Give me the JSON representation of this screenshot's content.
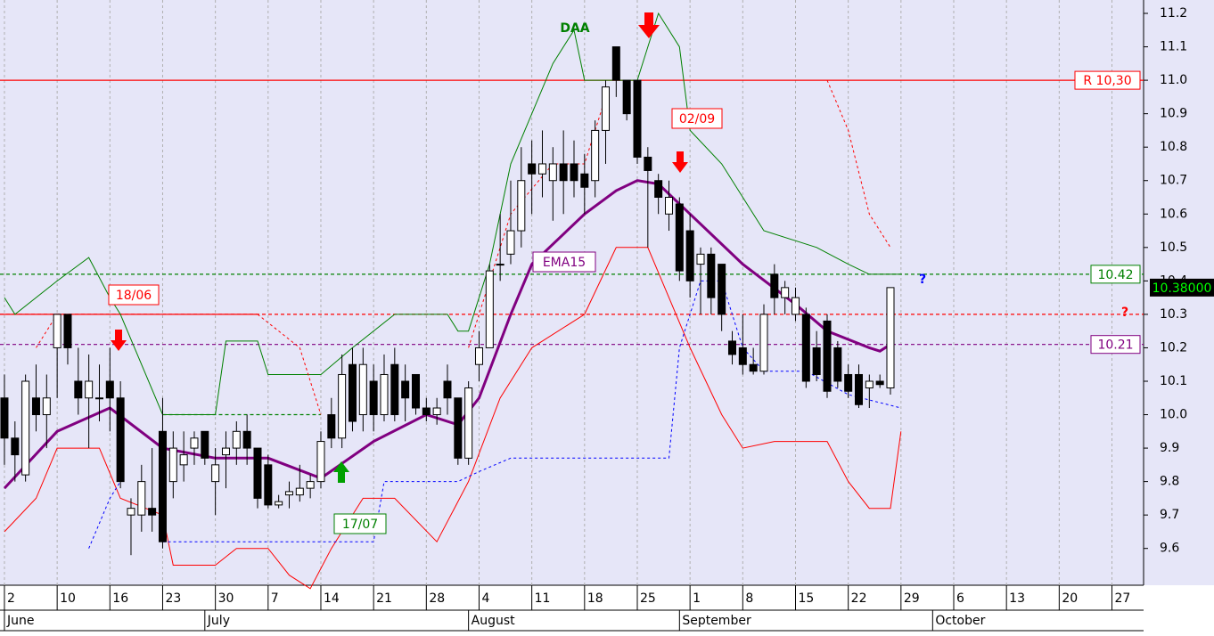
{
  "chart_data": {
    "type": "candlestick",
    "xlim": [
      -0.42,
      108.0
    ],
    "ylim": [
      9.49,
      11.24
    ],
    "yticks": [
      9.6,
      9.7,
      9.8,
      9.9,
      {
        "value": 10.0,
        "label": "10.0"
      },
      10.1,
      10.2,
      10.3,
      10.4,
      10.5,
      10.6,
      10.7,
      10.8,
      10.9,
      {
        "value": 11.0,
        "label": "11.0"
      },
      11.1,
      11.2
    ],
    "xticks": [
      {
        "value": 0,
        "label": "2"
      },
      {
        "value": 5,
        "label": "10"
      },
      {
        "value": 10,
        "label": "16"
      },
      {
        "value": 15,
        "label": "23"
      },
      {
        "value": 20,
        "label": "30"
      },
      {
        "value": 25,
        "label": "7"
      },
      {
        "value": 30,
        "label": "14"
      },
      {
        "value": 35,
        "label": "21"
      },
      {
        "value": 40,
        "label": "28"
      },
      {
        "value": 45,
        "label": "4"
      },
      {
        "value": 50,
        "label": "11"
      },
      {
        "value": 55,
        "label": "18"
      },
      {
        "value": 60,
        "label": "25"
      },
      {
        "value": 65,
        "label": "1"
      },
      {
        "value": 70,
        "label": "8"
      },
      {
        "value": 75,
        "label": "15"
      },
      {
        "value": 80,
        "label": "22"
      },
      {
        "value": 85,
        "label": "29"
      },
      {
        "value": 90,
        "label": "6"
      },
      {
        "value": 95,
        "label": "13"
      },
      {
        "value": 100,
        "label": "20"
      },
      {
        "value": 105,
        "label": "27"
      }
    ],
    "month_ticks": [
      {
        "value": 0,
        "label": "June"
      },
      {
        "value": 19,
        "label": "July"
      },
      {
        "value": 44,
        "label": "August"
      },
      {
        "value": 64,
        "label": "September"
      },
      {
        "value": 88,
        "label": "October"
      }
    ],
    "grid": true,
    "candles": {
      "x": [
        0,
        1,
        2,
        3,
        4,
        5,
        6,
        7,
        8,
        9,
        10,
        11,
        12,
        13,
        14,
        15,
        16,
        17,
        18,
        19,
        20,
        21,
        22,
        23,
        24,
        25,
        26,
        27,
        28,
        29,
        30,
        31,
        32,
        33,
        34,
        35,
        36,
        37,
        38,
        39,
        40,
        41,
        42,
        43,
        44,
        45,
        46,
        47,
        48,
        49,
        50,
        51,
        52,
        53,
        54,
        55,
        56,
        57,
        58,
        59,
        60,
        61,
        62,
        63,
        64,
        65,
        66,
        67,
        68,
        69,
        70,
        71,
        72,
        73,
        74,
        75,
        76,
        77,
        78,
        79,
        80,
        81,
        82,
        83,
        84
      ],
      "open": [
        10.05,
        9.93,
        9.82,
        10.05,
        10.0,
        10.2,
        10.3,
        10.1,
        10.05,
        10.05,
        10.1,
        10.05,
        9.7,
        9.7,
        9.72,
        9.95,
        9.8,
        9.85,
        9.9,
        9.95,
        9.8,
        9.88,
        9.9,
        9.95,
        9.9,
        9.85,
        9.73,
        9.76,
        9.76,
        9.78,
        9.8,
        10.0,
        9.93,
        10.15,
        10.0,
        10.1,
        10.0,
        10.15,
        10.1,
        10.12,
        10.02,
        10.0,
        10.1,
        10.05,
        9.87,
        10.15,
        10.2,
        10.45,
        10.48,
        10.55,
        10.75,
        10.72,
        10.7,
        10.75,
        10.75,
        10.72,
        10.7,
        10.85,
        11.1,
        11.0,
        11.0,
        10.77,
        10.7,
        10.6,
        10.63,
        10.55,
        10.45,
        10.48,
        10.45,
        10.22,
        10.2,
        10.15,
        10.13,
        10.42,
        10.35,
        10.3,
        10.3,
        10.2,
        10.28,
        10.2,
        10.12,
        10.12,
        10.08,
        10.1,
        10.08
      ],
      "high": [
        10.12,
        9.98,
        10.12,
        10.15,
        10.12,
        10.3,
        10.3,
        10.2,
        10.18,
        10.15,
        10.2,
        10.1,
        9.75,
        9.85,
        9.9,
        10.05,
        9.95,
        9.95,
        9.95,
        9.95,
        9.9,
        9.95,
        9.98,
        10.0,
        9.9,
        9.88,
        9.76,
        9.8,
        9.85,
        9.82,
        9.95,
        10.05,
        10.18,
        10.2,
        10.2,
        10.15,
        10.18,
        10.2,
        10.15,
        10.12,
        10.05,
        10.05,
        10.15,
        10.05,
        10.1,
        10.25,
        10.45,
        10.6,
        10.7,
        10.8,
        10.82,
        10.85,
        10.8,
        10.85,
        10.82,
        10.78,
        10.88,
        11.0,
        11.1,
        11.0,
        11.0,
        10.8,
        10.72,
        10.7,
        10.65,
        10.6,
        10.5,
        10.5,
        10.45,
        10.25,
        10.3,
        10.2,
        10.33,
        10.45,
        10.4,
        10.38,
        10.32,
        10.25,
        10.3,
        10.22,
        10.15,
        10.15,
        10.12,
        10.12,
        10.38
      ],
      "low": [
        9.85,
        9.8,
        9.8,
        9.95,
        9.9,
        10.05,
        10.15,
        10.0,
        9.9,
        9.98,
        9.95,
        9.78,
        9.58,
        9.65,
        9.65,
        9.6,
        9.75,
        9.8,
        9.85,
        9.85,
        9.7,
        9.78,
        9.85,
        9.85,
        9.72,
        9.72,
        9.72,
        9.72,
        9.74,
        9.75,
        9.78,
        9.9,
        9.9,
        9.95,
        9.95,
        9.95,
        9.98,
        9.98,
        9.98,
        10.0,
        9.98,
        9.97,
        10.0,
        9.85,
        9.85,
        10.1,
        10.2,
        10.4,
        10.45,
        10.5,
        10.6,
        10.65,
        10.58,
        10.6,
        10.65,
        10.6,
        10.65,
        10.75,
        10.95,
        10.88,
        10.75,
        10.5,
        10.6,
        10.55,
        10.4,
        10.35,
        10.3,
        10.3,
        10.25,
        10.15,
        10.12,
        10.12,
        10.12,
        10.3,
        10.3,
        10.28,
        10.08,
        10.1,
        10.05,
        10.08,
        10.05,
        10.02,
        10.02,
        10.08,
        10.06
      ],
      "close": [
        9.93,
        9.88,
        10.1,
        10.0,
        10.05,
        10.3,
        10.2,
        10.05,
        10.1,
        10.05,
        10.05,
        9.8,
        9.72,
        9.8,
        9.7,
        9.62,
        9.9,
        9.88,
        9.93,
        9.87,
        9.85,
        9.9,
        9.95,
        9.9,
        9.75,
        9.73,
        9.74,
        9.77,
        9.78,
        9.8,
        9.92,
        9.93,
        10.12,
        9.98,
        10.15,
        10.0,
        10.12,
        10.0,
        10.05,
        10.02,
        10.0,
        10.02,
        10.05,
        9.87,
        10.08,
        10.2,
        10.43,
        10.45,
        10.55,
        10.7,
        10.72,
        10.75,
        10.75,
        10.7,
        10.7,
        10.68,
        10.85,
        10.98,
        11.0,
        10.9,
        10.77,
        10.73,
        10.65,
        10.65,
        10.43,
        10.4,
        10.48,
        10.35,
        10.3,
        10.18,
        10.15,
        10.13,
        10.3,
        10.35,
        10.38,
        10.35,
        10.1,
        10.12,
        10.07,
        10.1,
        10.07,
        10.03,
        10.1,
        10.09,
        10.38
      ]
    },
    "series": [
      {
        "name": "EMA15",
        "color": "#800080",
        "width": 3,
        "style": "solid",
        "x": [
          0,
          5,
          10,
          15,
          20,
          25,
          30,
          35,
          40,
          43,
          45,
          48,
          50,
          55,
          58,
          60,
          62,
          65,
          70,
          75,
          78,
          82,
          83,
          84
        ],
        "values": [
          9.78,
          9.95,
          10.02,
          9.9,
          9.87,
          9.87,
          9.81,
          9.92,
          10.0,
          9.97,
          10.05,
          10.3,
          10.45,
          10.6,
          10.67,
          10.7,
          10.69,
          10.6,
          10.45,
          10.33,
          10.25,
          10.2,
          10.19,
          10.21
        ]
      },
      {
        "name": "upper",
        "color": "#008000",
        "width": 1,
        "style": "solid",
        "x": [
          0,
          1,
          5,
          8,
          10,
          11,
          15,
          20,
          21,
          24,
          25,
          30,
          33,
          37,
          42,
          43,
          44,
          46,
          48,
          50,
          52,
          54,
          55,
          60,
          62,
          64,
          65,
          68,
          72,
          77,
          80,
          82,
          85
        ],
        "values": [
          10.35,
          10.3,
          10.4,
          10.47,
          10.35,
          10.3,
          10.0,
          10.0,
          10.22,
          10.22,
          10.12,
          10.12,
          10.2,
          10.3,
          10.3,
          10.25,
          10.25,
          10.45,
          10.75,
          10.9,
          11.05,
          11.15,
          11.0,
          11.0,
          11.2,
          11.1,
          10.85,
          10.75,
          10.55,
          10.5,
          10.45,
          10.42,
          10.42
        ]
      },
      {
        "name": "lower",
        "color": "#ff0000",
        "width": 1,
        "style": "solid",
        "x": [
          0,
          3,
          5,
          9,
          11,
          15,
          16,
          20,
          22,
          25,
          27,
          29,
          31,
          34,
          37,
          41,
          44,
          47,
          50,
          55,
          58,
          61,
          63,
          65,
          68,
          70,
          73,
          78,
          80,
          82,
          84,
          85
        ],
        "values": [
          9.65,
          9.75,
          9.9,
          9.9,
          9.75,
          9.7,
          9.55,
          9.55,
          9.6,
          9.6,
          9.52,
          9.48,
          9.6,
          9.75,
          9.75,
          9.62,
          9.8,
          10.05,
          10.2,
          10.3,
          10.5,
          10.5,
          10.35,
          10.2,
          10.0,
          9.9,
          9.92,
          9.92,
          9.8,
          9.72,
          9.72,
          9.95
        ]
      },
      {
        "name": "stop-up",
        "color": "#ff0000",
        "width": 1,
        "style": "dashed",
        "x": [
          3,
          5,
          null,
          24,
          28,
          30,
          null,
          44,
          46,
          48,
          52,
          55,
          57,
          null,
          78,
          80,
          82,
          84
        ],
        "values": [
          10.2,
          10.3,
          null,
          10.3,
          10.2,
          10.0,
          null,
          10.2,
          10.4,
          10.6,
          10.75,
          10.75,
          10.95,
          null,
          11.0,
          10.85,
          10.6,
          10.5
        ]
      },
      {
        "name": "stop-down",
        "color": "#0000ff",
        "width": 1,
        "style": "dashed",
        "x": [
          8,
          10,
          11,
          null,
          15,
          35,
          36,
          43,
          45,
          48,
          63,
          64,
          66,
          68,
          70,
          72,
          76,
          80,
          85
        ],
        "values": [
          9.6,
          9.75,
          9.8,
          null,
          9.62,
          9.62,
          9.8,
          9.8,
          9.83,
          9.87,
          9.87,
          10.2,
          10.4,
          10.4,
          10.2,
          10.13,
          10.13,
          10.06,
          10.02
        ]
      }
    ],
    "hlines": [
      {
        "value": 11.0,
        "color": "#ff0000",
        "style": "solid",
        "label": "R 10,30"
      },
      {
        "value": 10.42,
        "color": "#008000",
        "style": "dashed",
        "label": "10.42"
      },
      {
        "value": 10.21,
        "color": "#800080",
        "style": "dashed",
        "label": "10.21"
      },
      {
        "value": 10.3,
        "color": "#ff0000",
        "style": "dashed"
      },
      {
        "value": 10.3,
        "color": "#ff0000",
        "style": "solid",
        "x": [
          -0.42,
          24
        ]
      },
      {
        "value": 10.0,
        "color": "#008000",
        "style": "dashed",
        "x": [
          15,
          30
        ]
      }
    ],
    "last_price": {
      "value": 10.38,
      "label": "10.38000"
    },
    "annotations": [
      "DAA",
      "EMA15",
      "18/06",
      "02/09",
      "17/07",
      "?",
      "?"
    ]
  }
}
